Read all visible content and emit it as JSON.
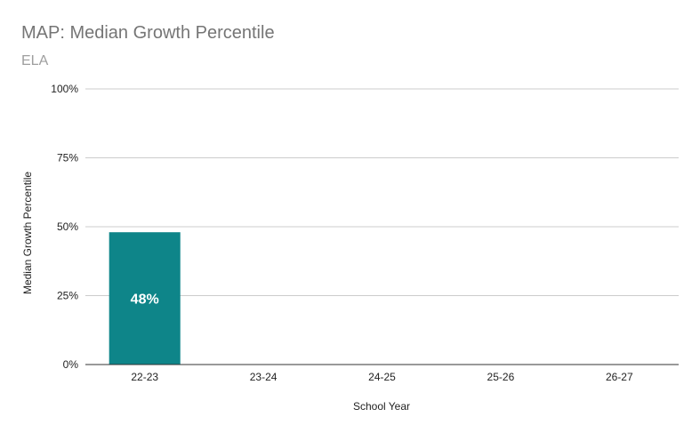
{
  "chart_data": {
    "type": "bar",
    "title": "MAP: Median Growth Percentile",
    "subtitle": "ELA",
    "xlabel": "School Year",
    "ylabel": "Median Growth Percentile",
    "categories": [
      "22-23",
      "23-24",
      "24-25",
      "25-26",
      "26-27"
    ],
    "values": [
      48,
      null,
      null,
      null,
      null
    ],
    "data_labels": [
      "48%",
      "",
      "",
      "",
      ""
    ],
    "ylim": [
      0,
      100
    ],
    "yticks": [
      0,
      25,
      50,
      75,
      100
    ],
    "ytick_labels": [
      "0%",
      "25%",
      "50%",
      "75%",
      "100%"
    ],
    "grid": true,
    "legend": "none",
    "bar_color": "#0e8589",
    "gridline_color": "#cccccc",
    "axis_color": "#333333"
  }
}
